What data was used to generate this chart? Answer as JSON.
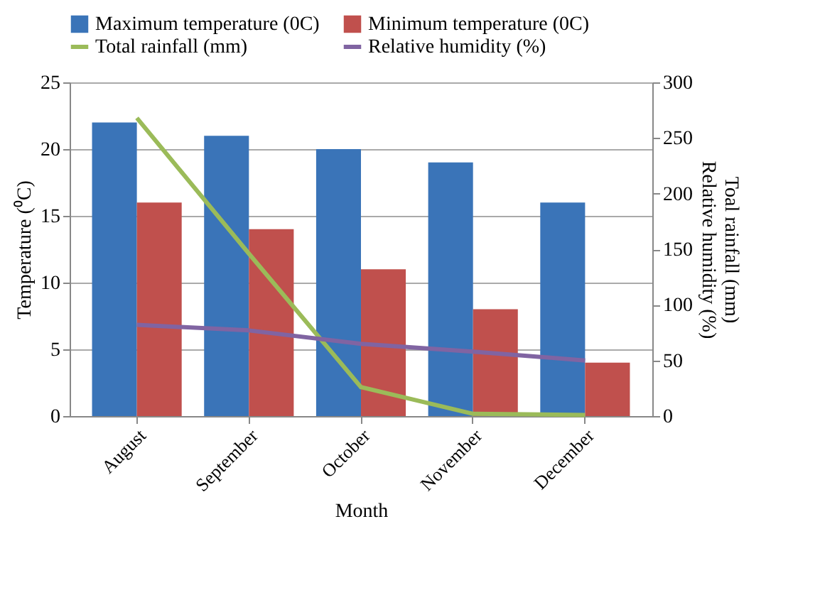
{
  "chart_data": {
    "type": "bar",
    "xlabel": "Month",
    "ylabel": "Temperature (⁰C)",
    "y2label": "Toal rainfall (mm)\nRelative humidity (%)",
    "categories": [
      "August",
      "September",
      "October",
      "November",
      "December"
    ],
    "series": [
      {
        "name": "Maximum temperature (0C)",
        "color": "#3a74b8",
        "values": [
          22,
          21,
          20,
          19,
          16
        ]
      },
      {
        "name": "Minimum temperature (0C)",
        "color": "#c0504d",
        "values": [
          16,
          14,
          11,
          8,
          4
        ]
      },
      {
        "name": "Total rainfall (mm)",
        "type": "line",
        "axis": "y2",
        "color": "#9bbb59",
        "values": [
          268,
          146,
          26,
          2,
          1
        ]
      },
      {
        "name": "Relative humidity (%)",
        "type": "line",
        "axis": "y2",
        "color": "#8064a2",
        "values": [
          82,
          77,
          65,
          58,
          50
        ]
      }
    ],
    "ylim": [
      0,
      25
    ],
    "yticks": [
      0,
      5,
      10,
      15,
      20,
      25
    ],
    "y2lim": [
      0,
      300
    ],
    "y2ticks": [
      0,
      50,
      100,
      150,
      200,
      250,
      300
    ],
    "grid": "y",
    "legend": "top",
    "marker": "none",
    "line_style": "solid"
  }
}
